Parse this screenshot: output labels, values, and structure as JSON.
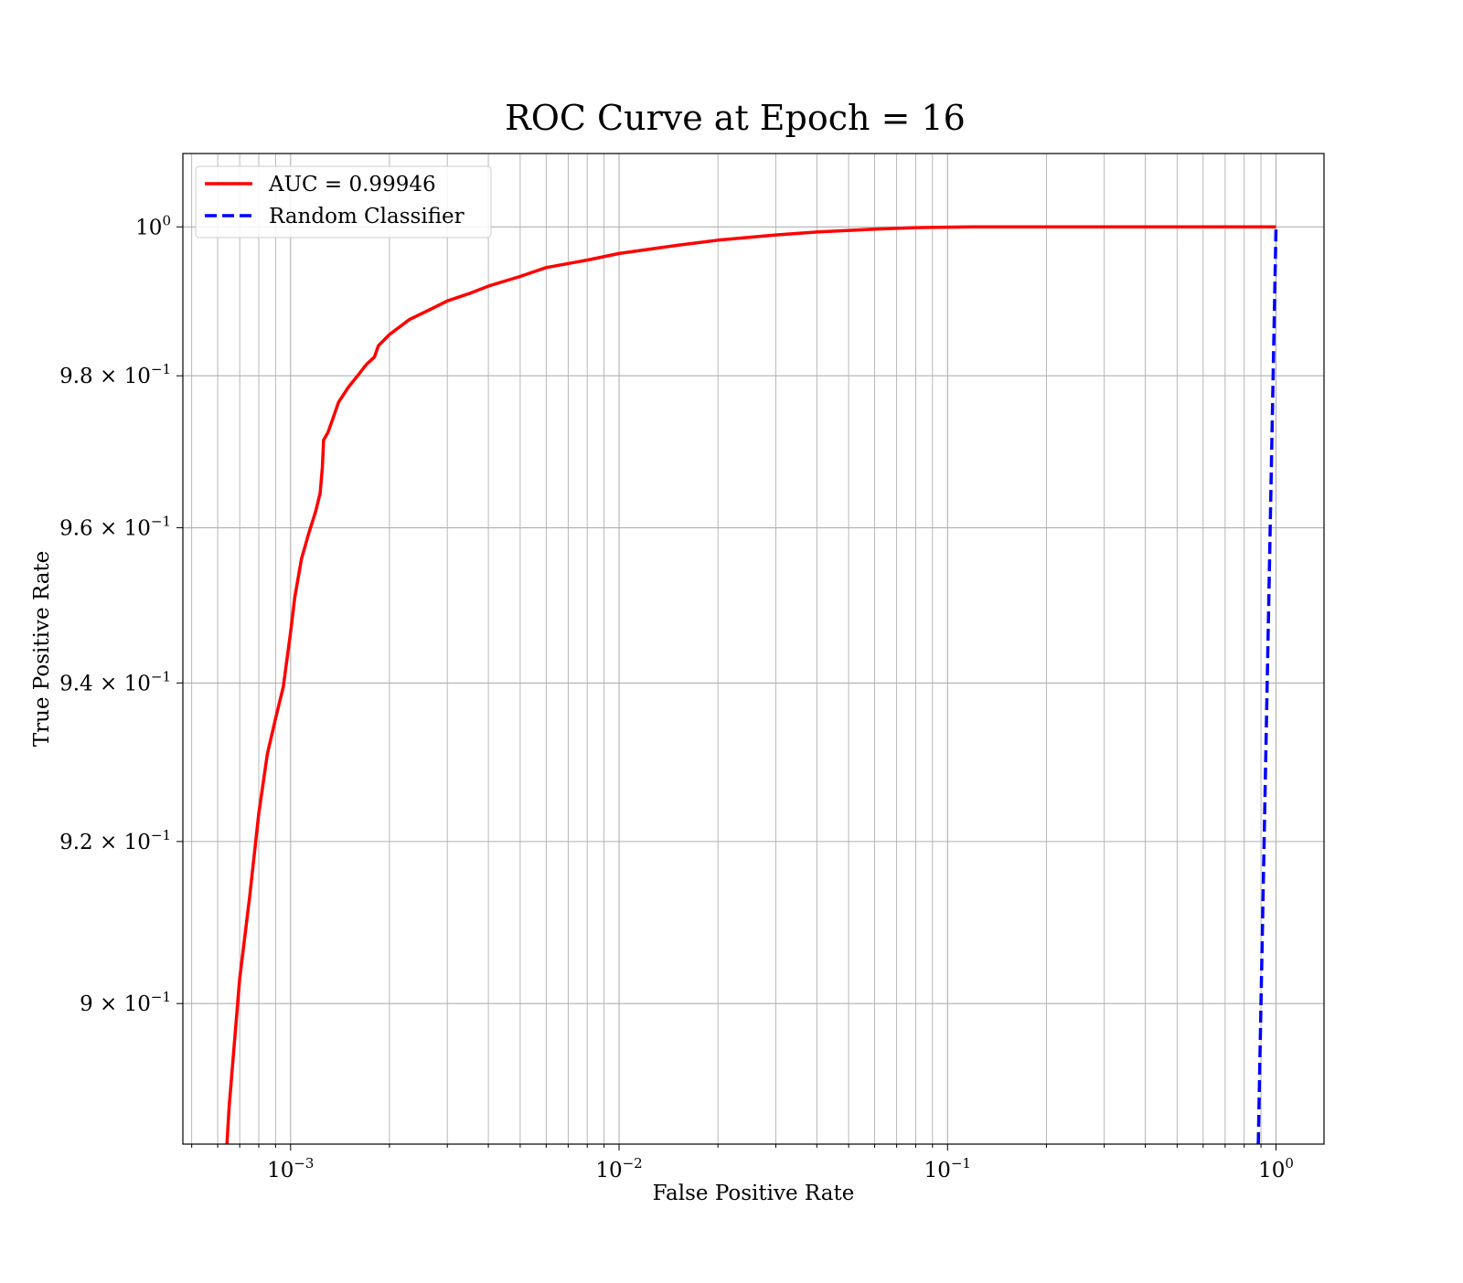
{
  "chart_data": {
    "type": "line",
    "title": "ROC Curve at Epoch = 16",
    "xlabel": "False Positive Rate",
    "ylabel": "True Positive Rate",
    "xscale": "log",
    "yscale": "log",
    "xlim": [
      0.00047,
      1.4
    ],
    "ylim": [
      0.883,
      1.01
    ],
    "grid": "on (major and minor)",
    "legend_position": "upper-left",
    "x_ticks": [
      {
        "value": 0.001,
        "base": "10",
        "exp": "−3"
      },
      {
        "value": 0.01,
        "base": "10",
        "exp": "−2"
      },
      {
        "value": 0.1,
        "base": "10",
        "exp": "−1"
      },
      {
        "value": 1,
        "base": "10",
        "exp": "0"
      }
    ],
    "y_ticks": [
      {
        "value": 1.0,
        "mant": "",
        "base": "10",
        "exp": "0"
      },
      {
        "value": 0.98,
        "mant": "9.8 × ",
        "base": "10",
        "exp": "−1"
      },
      {
        "value": 0.96,
        "mant": "9.6 × ",
        "base": "10",
        "exp": "−1"
      },
      {
        "value": 0.94,
        "mant": "9.4 × ",
        "base": "10",
        "exp": "−1"
      },
      {
        "value": 0.92,
        "mant": "9.2 × ",
        "base": "10",
        "exp": "−1"
      },
      {
        "value": 0.9,
        "mant": "9 × ",
        "base": "10",
        "exp": "−1"
      }
    ],
    "series": [
      {
        "name": "AUC = 0.99946",
        "color": "#ff0000",
        "style": "solid",
        "points": [
          [
            0.00064,
            0.883
          ],
          [
            0.00065,
            0.8875
          ],
          [
            0.0007,
            0.903
          ],
          [
            0.00075,
            0.913
          ],
          [
            0.0008,
            0.9235
          ],
          [
            0.00085,
            0.931
          ],
          [
            0.0009,
            0.9355
          ],
          [
            0.00095,
            0.9395
          ],
          [
            0.001,
            0.9465
          ],
          [
            0.00103,
            0.951
          ],
          [
            0.00108,
            0.956
          ],
          [
            0.00114,
            0.9595
          ],
          [
            0.00119,
            0.962
          ],
          [
            0.00123,
            0.9645
          ],
          [
            0.00125,
            0.968
          ],
          [
            0.00126,
            0.9715
          ],
          [
            0.0013,
            0.9725
          ],
          [
            0.00135,
            0.9745
          ],
          [
            0.0014,
            0.9765
          ],
          [
            0.0015,
            0.9785
          ],
          [
            0.0016,
            0.98
          ],
          [
            0.0017,
            0.9815
          ],
          [
            0.0018,
            0.9825
          ],
          [
            0.00185,
            0.984
          ],
          [
            0.002,
            0.9855
          ],
          [
            0.0023,
            0.9875
          ],
          [
            0.0027,
            0.989
          ],
          [
            0.003,
            0.99
          ],
          [
            0.0035,
            0.991
          ],
          [
            0.004,
            0.992
          ],
          [
            0.005,
            0.9933
          ],
          [
            0.006,
            0.9945
          ],
          [
            0.008,
            0.9955
          ],
          [
            0.01,
            0.9964
          ],
          [
            0.015,
            0.9975
          ],
          [
            0.02,
            0.9982
          ],
          [
            0.03,
            0.9989
          ],
          [
            0.04,
            0.9993
          ],
          [
            0.06,
            0.9997
          ],
          [
            0.08,
            0.9999
          ],
          [
            0.12,
            1.0
          ],
          [
            1.0,
            1.0
          ]
        ]
      },
      {
        "name": "Random Classifier",
        "color": "#0000ff",
        "style": "dashed",
        "points": [
          [
            0.883,
            0.883
          ],
          [
            1.0,
            1.0
          ]
        ]
      }
    ]
  }
}
